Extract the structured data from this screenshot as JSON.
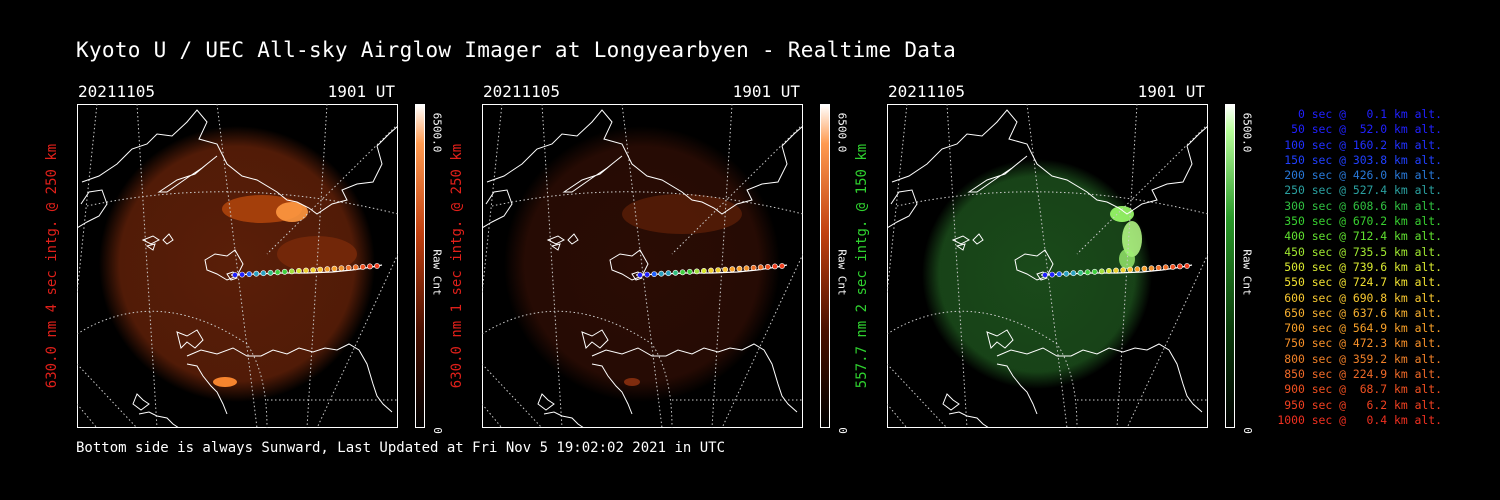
{
  "title": "Kyoto U / UEC All-sky Airglow Imager at Longyearbyen - Realtime Data",
  "panels": [
    {
      "date": "20211105",
      "time": "1901 UT",
      "label": "630.0 nm 4 sec intg. @ 250 km",
      "label_color": "#e0201a",
      "cbar_max": "6500.0",
      "cbar_unit": "Raw Cnt",
      "cbar_min": "0",
      "colormap": "red"
    },
    {
      "date": "20211105",
      "time": "1901 UT",
      "label": "630.0 nm 1 sec intg. @ 250 km",
      "label_color": "#e0201a",
      "cbar_max": "6500.0",
      "cbar_unit": "Raw Cnt",
      "cbar_min": "0",
      "colormap": "red"
    },
    {
      "date": "20211105",
      "time": "1901 UT",
      "label": "557.7 nm 2 sec intg. @ 150 km",
      "label_color": "#2fd12f",
      "cbar_max": "6500.0",
      "cbar_unit": "Raw Cnt",
      "cbar_min": "0",
      "colormap": "green"
    }
  ],
  "footer": "Bottom side is always Sunward, Last Updated at Fri Nov  5 19:02:02 2021 in UTC",
  "legend": [
    {
      "text": "0 sec @   0.1 km alt.",
      "color": "#2020ff"
    },
    {
      "text": "50 sec @  52.0 km alt.",
      "color": "#2020ff"
    },
    {
      "text": "100 sec @ 160.2 km alt.",
      "color": "#2030ff"
    },
    {
      "text": "150 sec @ 303.8 km alt.",
      "color": "#2040ff"
    },
    {
      "text": "200 sec @ 426.0 km alt.",
      "color": "#2878d8"
    },
    {
      "text": "250 sec @ 527.4 km alt.",
      "color": "#2aa0a0"
    },
    {
      "text": "300 sec @ 608.6 km alt.",
      "color": "#30c040"
    },
    {
      "text": "350 sec @ 670.2 km alt.",
      "color": "#38d030"
    },
    {
      "text": "400 sec @ 712.4 km alt.",
      "color": "#60e030"
    },
    {
      "text": "450 sec @ 735.5 km alt.",
      "color": "#a0e830"
    },
    {
      "text": "500 sec @ 739.6 km alt.",
      "color": "#d8e830"
    },
    {
      "text": "550 sec @ 724.7 km alt.",
      "color": "#f0e030"
    },
    {
      "text": "600 sec @ 690.8 km alt.",
      "color": "#f8c830"
    },
    {
      "text": "650 sec @ 637.6 km alt.",
      "color": "#f8b030"
    },
    {
      "text": "700 sec @ 564.9 km alt.",
      "color": "#f8a028"
    },
    {
      "text": "750 sec @ 472.3 km alt.",
      "color": "#f89028"
    },
    {
      "text": "800 sec @ 359.2 km alt.",
      "color": "#f08028"
    },
    {
      "text": "850 sec @ 224.9 km alt.",
      "color": "#f06a28"
    },
    {
      "text": "900 sec @  68.7 km alt.",
      "color": "#f05020"
    },
    {
      "text": "950 sec @   6.2 km alt.",
      "color": "#f04020"
    },
    {
      "text": "1000 sec @   0.4 km alt.",
      "color": "#f03020"
    }
  ]
}
